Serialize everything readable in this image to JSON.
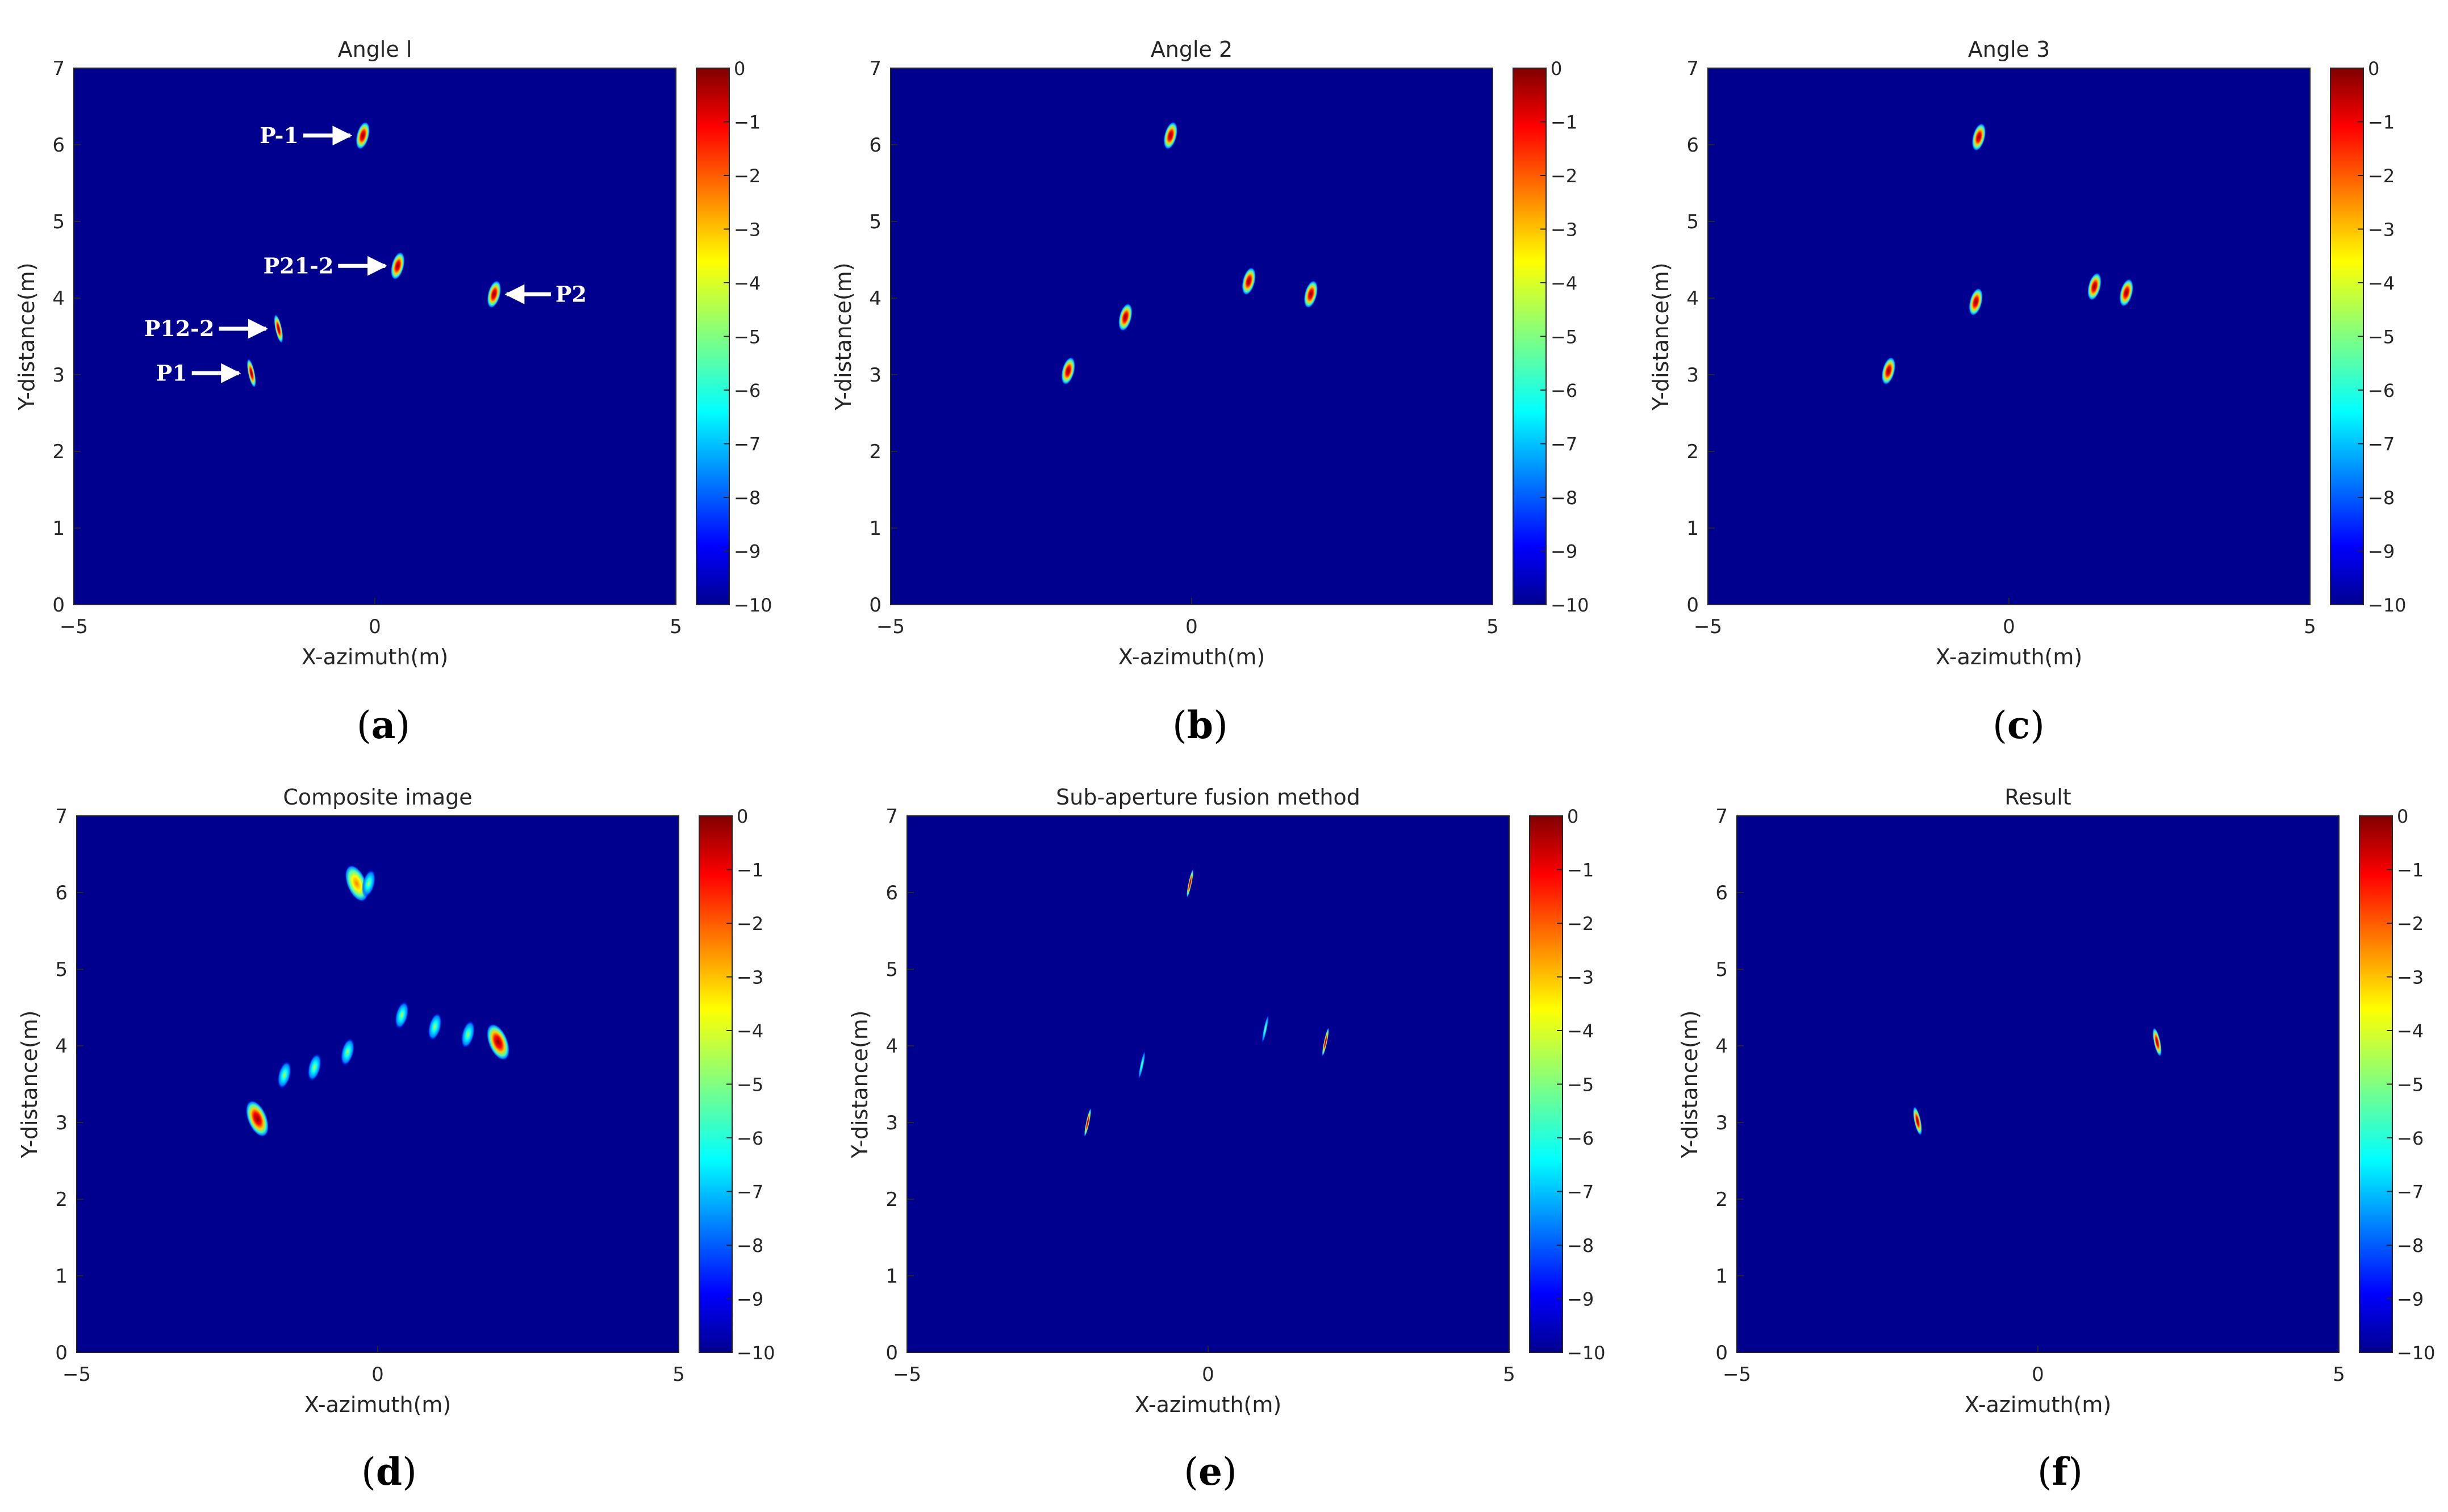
{
  "figure": {
    "colorbar_ticks": [
      "0",
      "−1",
      "−2",
      "−3",
      "−4",
      "−5",
      "−6",
      "−7",
      "−8",
      "−9",
      "−10"
    ],
    "colors": {
      "background": "#00008f",
      "frame": "#262626",
      "annotation": "#ffffff"
    }
  },
  "chart_data": [
    {
      "type": "heatmap",
      "panel": "a",
      "panel_label": "a",
      "title": "Angle l",
      "xlabel": "X-azimuth(m)",
      "ylabel": "Y-distance(m)",
      "xlim": [
        -5,
        5
      ],
      "ylim": [
        0,
        7
      ],
      "xticks": [
        "−5",
        "0",
        "5"
      ],
      "yticks": [
        "0",
        "1",
        "2",
        "3",
        "4",
        "5",
        "6",
        "7"
      ],
      "colorbar_range": [
        -10,
        0
      ],
      "points": [
        {
          "x": -0.2,
          "y": 6.12,
          "intensity": 0,
          "shape": "oval"
        },
        {
          "x": 0.38,
          "y": 4.42,
          "intensity": 0,
          "shape": "oval"
        },
        {
          "x": 1.98,
          "y": 4.05,
          "intensity": 0,
          "shape": "oval"
        },
        {
          "x": -1.6,
          "y": 3.6,
          "intensity": 0,
          "shape": "thin"
        },
        {
          "x": -2.05,
          "y": 3.02,
          "intensity": 0,
          "shape": "thin"
        }
      ],
      "annotations": [
        {
          "text": "P-1",
          "x": -0.2,
          "y": 6.12,
          "side": "left"
        },
        {
          "text": "P21-2",
          "x": 0.38,
          "y": 4.42,
          "side": "left"
        },
        {
          "text": "P2",
          "x": 1.98,
          "y": 4.05,
          "side": "right"
        },
        {
          "text": "P12-2",
          "x": -1.6,
          "y": 3.6,
          "side": "left"
        },
        {
          "text": "P1",
          "x": -2.05,
          "y": 3.02,
          "side": "left"
        }
      ]
    },
    {
      "type": "heatmap",
      "panel": "b",
      "panel_label": "b",
      "title": "Angle 2",
      "xlabel": "X-azimuth(m)",
      "ylabel": "Y-distance(m)",
      "xlim": [
        -5,
        5
      ],
      "ylim": [
        0,
        7
      ],
      "xticks": [
        "−5",
        "0",
        "5"
      ],
      "yticks": [
        "0",
        "1",
        "2",
        "3",
        "4",
        "5",
        "6",
        "7"
      ],
      "colorbar_range": [
        -10,
        0
      ],
      "points": [
        {
          "x": -0.35,
          "y": 6.12,
          "intensity": 0,
          "shape": "oval"
        },
        {
          "x": 0.95,
          "y": 4.22,
          "intensity": 0,
          "shape": "oval"
        },
        {
          "x": 1.98,
          "y": 4.05,
          "intensity": 0,
          "shape": "oval"
        },
        {
          "x": -1.1,
          "y": 3.75,
          "intensity": 0,
          "shape": "oval"
        },
        {
          "x": -2.05,
          "y": 3.05,
          "intensity": 0,
          "shape": "oval"
        }
      ]
    },
    {
      "type": "heatmap",
      "panel": "c",
      "panel_label": "c",
      "title": "Angle 3",
      "xlabel": "X-azimuth(m)",
      "ylabel": "Y-distance(m)",
      "xlim": [
        -5,
        5
      ],
      "ylim": [
        0,
        7
      ],
      "xticks": [
        "−5",
        "0",
        "5"
      ],
      "yticks": [
        "0",
        "1",
        "2",
        "3",
        "4",
        "5",
        "6",
        "7"
      ],
      "colorbar_range": [
        -10,
        0
      ],
      "points": [
        {
          "x": -0.5,
          "y": 6.1,
          "intensity": 0,
          "shape": "oval"
        },
        {
          "x": 1.42,
          "y": 4.15,
          "intensity": 0,
          "shape": "oval"
        },
        {
          "x": 1.95,
          "y": 4.07,
          "intensity": 0,
          "shape": "oval"
        },
        {
          "x": -0.55,
          "y": 3.95,
          "intensity": 0,
          "shape": "oval"
        },
        {
          "x": -2.0,
          "y": 3.05,
          "intensity": 0,
          "shape": "oval"
        }
      ]
    },
    {
      "type": "heatmap",
      "panel": "d",
      "panel_label": "d",
      "title": "Composite image",
      "xlabel": "X-azimuth(m)",
      "ylabel": "Y-distance(m)",
      "xlim": [
        -5,
        5
      ],
      "ylim": [
        0,
        7
      ],
      "xticks": [
        "−5",
        "0",
        "5"
      ],
      "yticks": [
        "0",
        "1",
        "2",
        "3",
        "4",
        "5",
        "6",
        "7"
      ],
      "colorbar_range": [
        -10,
        0
      ],
      "points": [
        {
          "x": -0.35,
          "y": 6.12,
          "intensity": -4,
          "shape": "blob"
        },
        {
          "x": -0.15,
          "y": 6.12,
          "intensity": -5,
          "shape": "oval"
        },
        {
          "x": 0.4,
          "y": 4.4,
          "intensity": -6,
          "shape": "oval"
        },
        {
          "x": 0.95,
          "y": 4.25,
          "intensity": -6,
          "shape": "oval"
        },
        {
          "x": 1.5,
          "y": 4.15,
          "intensity": -6,
          "shape": "oval"
        },
        {
          "x": 2.0,
          "y": 4.05,
          "intensity": 0,
          "shape": "blob"
        },
        {
          "x": -0.5,
          "y": 3.92,
          "intensity": -6,
          "shape": "oval"
        },
        {
          "x": -1.05,
          "y": 3.72,
          "intensity": -6,
          "shape": "oval"
        },
        {
          "x": -1.55,
          "y": 3.62,
          "intensity": -6,
          "shape": "oval"
        },
        {
          "x": -2.0,
          "y": 3.05,
          "intensity": 0,
          "shape": "blob"
        }
      ]
    },
    {
      "type": "heatmap",
      "panel": "e",
      "panel_label": "e",
      "title": "Sub-aperture fusion method",
      "xlabel": "X-azimuth(m)",
      "ylabel": "Y-distance(m)",
      "xlim": [
        -5,
        5
      ],
      "ylim": [
        0,
        7
      ],
      "xticks": [
        "−5",
        "0",
        "5"
      ],
      "yticks": [
        "0",
        "1",
        "2",
        "3",
        "4",
        "5",
        "6",
        "7"
      ],
      "colorbar_range": [
        -10,
        0
      ],
      "points": [
        {
          "x": -0.3,
          "y": 6.12,
          "intensity": -1,
          "shape": "line"
        },
        {
          "x": 0.95,
          "y": 4.22,
          "intensity": -6,
          "shape": "line"
        },
        {
          "x": 1.95,
          "y": 4.05,
          "intensity": -1,
          "shape": "line"
        },
        {
          "x": -1.1,
          "y": 3.75,
          "intensity": -6,
          "shape": "line"
        },
        {
          "x": -2.0,
          "y": 3.0,
          "intensity": -1,
          "shape": "line"
        }
      ]
    },
    {
      "type": "heatmap",
      "panel": "f",
      "panel_label": "f",
      "title": "Result",
      "xlabel": "X-azimuth(m)",
      "ylabel": "Y-distance(m)",
      "xlim": [
        -5,
        5
      ],
      "ylim": [
        0,
        7
      ],
      "xticks": [
        "−5",
        "0",
        "5"
      ],
      "yticks": [
        "0",
        "1",
        "2",
        "3",
        "4",
        "5",
        "6",
        "7"
      ],
      "colorbar_range": [
        -10,
        0
      ],
      "points": [
        {
          "x": 1.98,
          "y": 4.05,
          "intensity": 0,
          "shape": "thin"
        },
        {
          "x": -2.0,
          "y": 3.02,
          "intensity": 0,
          "shape": "thin"
        }
      ]
    }
  ]
}
